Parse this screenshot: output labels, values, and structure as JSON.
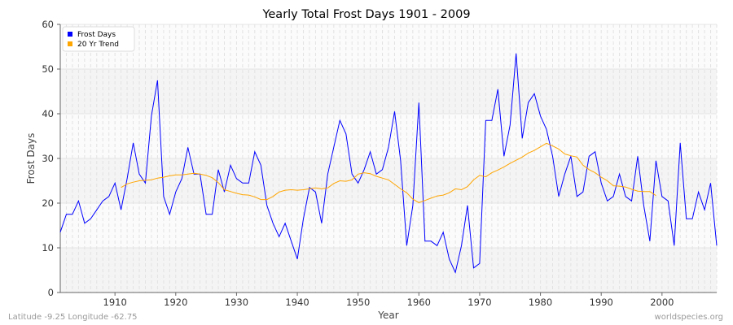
{
  "chart_data": {
    "type": "line",
    "title": "Yearly Total Frost Days 1901 - 2009",
    "xlabel": "Year",
    "ylabel": "Frost Days",
    "xlim": [
      1901,
      2009
    ],
    "ylim": [
      0,
      60
    ],
    "xticks": [
      1910,
      1920,
      1930,
      1940,
      1950,
      1960,
      1970,
      1980,
      1990,
      2000
    ],
    "yticks": [
      0,
      10,
      20,
      30,
      40,
      50,
      60
    ],
    "grid": true,
    "legend_position": "top-left",
    "series": [
      {
        "name": "Frost Days",
        "color": "#0000ff",
        "x_start": 1901,
        "values": [
          13.5,
          17.5,
          17.5,
          20.5,
          15.5,
          16.5,
          18.5,
          20.5,
          21.5,
          24.5,
          18.5,
          25.5,
          33.5,
          26.5,
          24.5,
          39.5,
          47.5,
          21.5,
          17.5,
          22.5,
          25.5,
          32.5,
          26.5,
          26.5,
          17.5,
          17.5,
          27.5,
          22.5,
          28.5,
          25.5,
          24.5,
          24.5,
          31.5,
          28.5,
          19.5,
          15.5,
          12.5,
          15.5,
          11.5,
          7.5,
          16.5,
          23.5,
          22.5,
          15.5,
          26.5,
          32.5,
          38.5,
          35.5,
          26.5,
          24.5,
          27.5,
          31.5,
          26.5,
          27.5,
          32.5,
          40.5,
          29.5,
          10.5,
          19.5,
          42.5,
          11.5,
          11.5,
          10.5,
          13.5,
          7.5,
          4.5,
          10.5,
          19.5,
          5.5,
          6.5,
          38.5,
          38.5,
          45.5,
          30.5,
          37.5,
          53.5,
          34.5,
          42.5,
          44.5,
          39.5,
          36.5,
          30.5,
          21.5,
          26.5,
          30.5,
          21.5,
          22.5,
          30.5,
          31.5,
          24.5,
          20.5,
          21.5,
          26.5,
          21.5,
          20.5,
          30.5,
          19.5,
          11.5,
          29.5,
          21.5,
          20.5,
          10.5,
          33.5,
          16.5,
          16.5,
          22.5,
          18.5,
          24.5,
          10.5
        ]
      },
      {
        "name": "20 Yr Trend",
        "color": "#ffa500",
        "x_start": 1911,
        "values": [
          23.5,
          24.3,
          24.7,
          25.0,
          25.1,
          25.2,
          25.6,
          25.8,
          26.1,
          26.3,
          26.3,
          26.5,
          26.7,
          26.5,
          26.2,
          25.7,
          24.6,
          23.0,
          22.6,
          22.2,
          21.9,
          21.8,
          21.4,
          20.8,
          20.8,
          21.5,
          22.5,
          22.9,
          23.0,
          22.9,
          23.0,
          23.2,
          23.4,
          23.2,
          23.4,
          24.4,
          25.0,
          24.9,
          25.2,
          26.5,
          26.8,
          26.6,
          26.0,
          25.6,
          25.2,
          24.2,
          23.2,
          22.3,
          20.9,
          20.1,
          20.6,
          21.1,
          21.6,
          21.8,
          22.3,
          23.2,
          23.0,
          23.7,
          25.2,
          26.2,
          25.9,
          26.8,
          27.4,
          28.1,
          28.9,
          29.6,
          30.3,
          31.2,
          31.8,
          32.6,
          33.4,
          32.8,
          32.1,
          31.0,
          30.6,
          30.3,
          28.5,
          27.5,
          26.8,
          25.8,
          25.0,
          23.9,
          23.8,
          23.6,
          23.1,
          22.7,
          22.6,
          22.6,
          21.7
        ]
      }
    ]
  },
  "footer": {
    "location": "Latitude -9.25 Longitude -62.75",
    "source": "worldspecies.org"
  }
}
